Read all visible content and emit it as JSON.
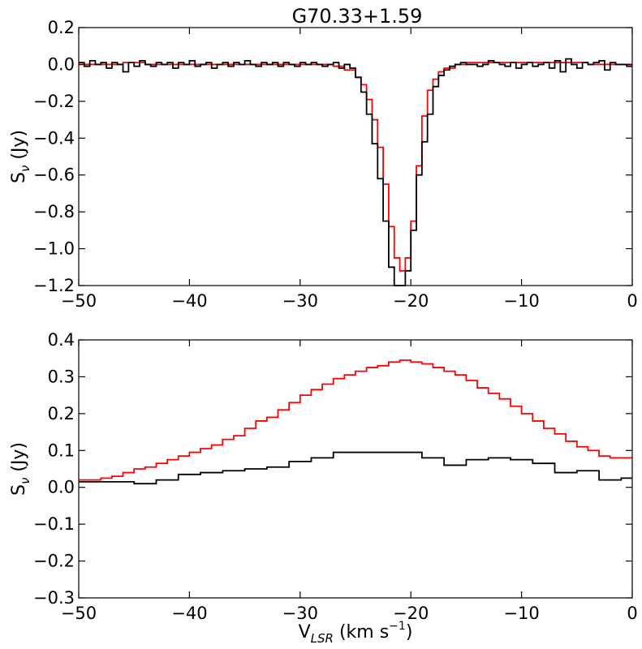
{
  "chart_data": [
    {
      "type": "line",
      "title": "G70.33+1.59",
      "ylabel": "S",
      "ylabel_sub": "ν",
      "ylabel_unit": " (Jy)",
      "xlabel": "",
      "xlim": [
        -50,
        0
      ],
      "ylim": [
        -1.2,
        0.2
      ],
      "xticks": [
        -50,
        -40,
        -30,
        -20,
        -10,
        0
      ],
      "xtick_labels": [
        "−50",
        "−40",
        "−30",
        "−20",
        "−10",
        "0"
      ],
      "yticks": [
        -1.2,
        -1.0,
        -0.8,
        -0.6,
        -0.4,
        -0.2,
        0.0,
        0.2
      ],
      "ytick_labels": [
        "−1.2",
        "−1.0",
        "−0.8",
        "−0.6",
        "−0.4",
        "−0.2",
        "0.0",
        "0.2"
      ],
      "grid": false,
      "series": [
        {
          "color": "#ff0000",
          "step": true,
          "x": [
            -50,
            -48,
            -46,
            -44,
            -42,
            -40,
            -38,
            -36,
            -34,
            -32,
            -30,
            -28,
            -27,
            -26,
            -25,
            -24.5,
            -24,
            -23.5,
            -23,
            -22.5,
            -22,
            -21.5,
            -21,
            -20.5,
            -20,
            -19.5,
            -19,
            -18.5,
            -18,
            -17.5,
            -17,
            -16,
            -15,
            -14,
            -12,
            -10,
            -8,
            -6,
            -4,
            -2,
            0
          ],
          "y": [
            0.0,
            0.0,
            0.01,
            0.0,
            0.0,
            0.0,
            0.0,
            0.0,
            0.0,
            0.0,
            0.0,
            0.0,
            -0.01,
            -0.03,
            -0.07,
            -0.11,
            -0.19,
            -0.3,
            -0.45,
            -0.65,
            -0.88,
            -1.05,
            -1.12,
            -1.05,
            -0.85,
            -0.55,
            -0.28,
            -0.14,
            -0.08,
            -0.04,
            -0.02,
            0.0,
            0.01,
            0.01,
            0.01,
            0.01,
            0.01,
            0.01,
            0.0,
            0.0,
            0.0
          ]
        },
        {
          "color": "#000000",
          "step": true,
          "x": [
            -50,
            -49.5,
            -49,
            -48.5,
            -48,
            -47.5,
            -47,
            -46.5,
            -46,
            -45.5,
            -45,
            -44.5,
            -44,
            -43.5,
            -43,
            -42.5,
            -42,
            -41.5,
            -41,
            -40.5,
            -40,
            -39.5,
            -39,
            -38.5,
            -38,
            -37.5,
            -37,
            -36.5,
            -36,
            -35.5,
            -35,
            -34.5,
            -34,
            -33.5,
            -33,
            -32.5,
            -32,
            -31.5,
            -31,
            -30.5,
            -30,
            -29.5,
            -29,
            -28.5,
            -28,
            -27.5,
            -27,
            -26.5,
            -26,
            -25.5,
            -25,
            -24.5,
            -24,
            -23.5,
            -23,
            -22.5,
            -22,
            -21.5,
            -21,
            -20.5,
            -20,
            -19.5,
            -19,
            -18.5,
            -18,
            -17.5,
            -17,
            -16.5,
            -16,
            -15.5,
            -15,
            -14.5,
            -14,
            -13.5,
            -13,
            -12.5,
            -12,
            -11.5,
            -11,
            -10.5,
            -10,
            -9.5,
            -9,
            -8.5,
            -8,
            -7.5,
            -7,
            -6.5,
            -6,
            -5.5,
            -5,
            -4.5,
            -4,
            -3.5,
            -3,
            -2.5,
            -2,
            -1.5,
            -1,
            -0.5
          ],
          "y": [
            0.01,
            -0.01,
            0.02,
            0.0,
            0.01,
            -0.02,
            0.01,
            0.0,
            -0.04,
            0.01,
            -0.01,
            0.02,
            0.0,
            -0.01,
            0.01,
            0.0,
            0.01,
            -0.02,
            0.01,
            0.0,
            0.02,
            -0.01,
            0.0,
            0.01,
            -0.02,
            0.0,
            0.01,
            -0.01,
            0.01,
            0.0,
            0.02,
            0.0,
            -0.01,
            0.01,
            0.0,
            0.01,
            -0.01,
            0.01,
            0.0,
            -0.01,
            0.01,
            0.0,
            0.01,
            0.0,
            -0.01,
            0.0,
            0.01,
            -0.02,
            0.0,
            -0.02,
            -0.07,
            -0.15,
            -0.27,
            -0.43,
            -0.62,
            -0.85,
            -1.1,
            -1.2,
            -1.2,
            -1.12,
            -0.9,
            -0.6,
            -0.42,
            -0.27,
            -0.12,
            -0.06,
            -0.03,
            -0.01,
            0.0,
            0.01,
            0.0,
            0.0,
            -0.01,
            0.0,
            0.02,
            0.01,
            0.0,
            -0.01,
            0.01,
            -0.02,
            0.0,
            0.01,
            -0.01,
            0.0,
            0.01,
            -0.02,
            0.02,
            -0.04,
            0.03,
            0.0,
            -0.02,
            0.01,
            0.0,
            0.01,
            0.02,
            -0.03,
            0.01,
            0.0,
            0.0,
            -0.01
          ]
        }
      ]
    },
    {
      "type": "line",
      "title": "",
      "ylabel": "S",
      "ylabel_sub": "ν",
      "ylabel_unit": " (Jy)",
      "xlabel": "V",
      "xlabel_sub": "LSR",
      "xlabel_unit": " (km s",
      "xlabel_sup": "−1",
      "xlabel_close": ")",
      "xlim": [
        -50,
        0
      ],
      "ylim": [
        -0.3,
        0.4
      ],
      "xticks": [
        -50,
        -40,
        -30,
        -20,
        -10,
        0
      ],
      "xtick_labels": [
        "−50",
        "−40",
        "−30",
        "−20",
        "−10",
        "0"
      ],
      "yticks": [
        -0.3,
        -0.2,
        -0.1,
        0.0,
        0.1,
        0.2,
        0.3,
        0.4
      ],
      "ytick_labels": [
        "−0.3",
        "−0.2",
        "−0.1",
        "0.0",
        "0.1",
        "0.2",
        "0.3",
        "0.4"
      ],
      "grid": false,
      "series": [
        {
          "color": "#ff0000",
          "step": true,
          "x": [
            -50,
            -49,
            -48,
            -47,
            -46,
            -45,
            -44,
            -43,
            -42,
            -41,
            -40,
            -39,
            -38,
            -37,
            -36,
            -35,
            -34,
            -33,
            -32,
            -31,
            -30,
            -29,
            -28,
            -27,
            -26,
            -25,
            -24,
            -23,
            -22,
            -21,
            -20,
            -19,
            -18,
            -17,
            -16,
            -15,
            -14,
            -13,
            -12,
            -11,
            -10,
            -9,
            -8,
            -7,
            -6,
            -5,
            -4,
            -3,
            -2,
            -1
          ],
          "y": [
            0.02,
            0.02,
            0.025,
            0.03,
            0.04,
            0.05,
            0.055,
            0.065,
            0.075,
            0.085,
            0.095,
            0.105,
            0.115,
            0.13,
            0.14,
            0.16,
            0.18,
            0.19,
            0.21,
            0.23,
            0.25,
            0.265,
            0.28,
            0.295,
            0.305,
            0.315,
            0.325,
            0.33,
            0.34,
            0.345,
            0.34,
            0.335,
            0.325,
            0.315,
            0.305,
            0.29,
            0.27,
            0.255,
            0.24,
            0.22,
            0.2,
            0.18,
            0.16,
            0.145,
            0.125,
            0.11,
            0.1,
            0.085,
            0.08,
            0.08
          ]
        },
        {
          "color": "#000000",
          "step": true,
          "x": [
            -50,
            -47,
            -45,
            -43,
            -41,
            -39,
            -37,
            -35,
            -33,
            -31,
            -29,
            -27,
            -24,
            -21,
            -19,
            -17,
            -15,
            -13,
            -11,
            -9,
            -7,
            -5,
            -3,
            -1
          ],
          "y": [
            0.015,
            0.015,
            0.01,
            0.02,
            0.035,
            0.04,
            0.045,
            0.05,
            0.055,
            0.07,
            0.08,
            0.095,
            0.095,
            0.095,
            0.08,
            0.06,
            0.075,
            0.08,
            0.075,
            0.065,
            0.04,
            0.045,
            0.02,
            0.025
          ]
        }
      ]
    }
  ]
}
